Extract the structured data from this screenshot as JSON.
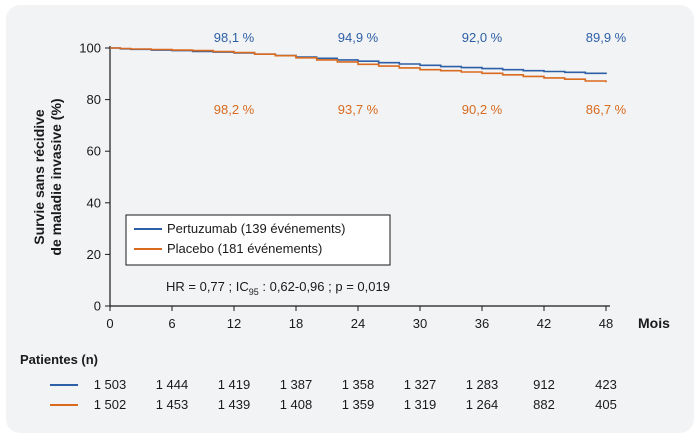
{
  "chart_data": {
    "type": "line",
    "ylabel_line1": "Survie sans récidive",
    "ylabel_line2": "de maladie invasive (%)",
    "xlabel": "Mois",
    "xlim": [
      0,
      48
    ],
    "ylim": [
      0,
      100
    ],
    "x_ticks": [
      0,
      6,
      12,
      18,
      24,
      30,
      36,
      42,
      48
    ],
    "y_ticks": [
      0,
      20,
      40,
      60,
      80,
      100
    ],
    "grid": false,
    "legend_position": "bottom-left",
    "series": [
      {
        "name": "Pertuzumab (139 événements)",
        "color": "#2d5fa6",
        "x": [
          0,
          1,
          2,
          4,
          6,
          8,
          10,
          12,
          14,
          16,
          18,
          20,
          22,
          24,
          26,
          28,
          30,
          32,
          34,
          36,
          38,
          40,
          42,
          44,
          46,
          48
        ],
        "y": [
          100,
          99.7,
          99.5,
          99.2,
          99.0,
          98.7,
          98.4,
          98.1,
          97.6,
          97.1,
          96.5,
          96.0,
          95.4,
          94.9,
          94.3,
          93.8,
          93.3,
          92.8,
          92.4,
          92.0,
          91.6,
          91.2,
          90.9,
          90.6,
          90.2,
          89.9
        ],
        "annotations": [
          {
            "x": 12,
            "label": "98,1 %"
          },
          {
            "x": 24,
            "label": "94,9 %"
          },
          {
            "x": 36,
            "label": "92,0 %"
          },
          {
            "x": 48,
            "label": "89,9 %"
          }
        ],
        "at_risk": [
          "1 503",
          "1 444",
          "1 419",
          "1 387",
          "1 358",
          "1 327",
          "1 283",
          "912",
          "423"
        ]
      },
      {
        "name": "Placebo (181 événements)",
        "color": "#d96a1e",
        "x": [
          0,
          1,
          2,
          4,
          6,
          8,
          10,
          12,
          14,
          16,
          18,
          20,
          22,
          24,
          26,
          28,
          30,
          32,
          34,
          36,
          38,
          40,
          42,
          44,
          46,
          48
        ],
        "y": [
          100,
          99.8,
          99.6,
          99.4,
          99.2,
          99.0,
          98.6,
          98.2,
          97.6,
          97.0,
          96.2,
          95.4,
          94.6,
          93.7,
          93.0,
          92.3,
          91.6,
          91.2,
          90.7,
          90.2,
          89.6,
          89.0,
          88.4,
          87.9,
          87.2,
          86.7
        ],
        "annotations": [
          {
            "x": 12,
            "label": "98,2 %"
          },
          {
            "x": 24,
            "label": "93,7 %"
          },
          {
            "x": 36,
            "label": "90,2 %"
          },
          {
            "x": 48,
            "label": "86,7 %"
          }
        ],
        "at_risk": [
          "1 502",
          "1 453",
          "1 439",
          "1 408",
          "1 359",
          "1 319",
          "1 264",
          "882",
          "405"
        ]
      }
    ],
    "stats": {
      "hr": "HR = 0,77 ; IC",
      "hr_sub": "95",
      "hr_rest": " : 0,62-0,96 ; p = 0,019"
    },
    "risk_table_title": "Patientes (n)"
  }
}
